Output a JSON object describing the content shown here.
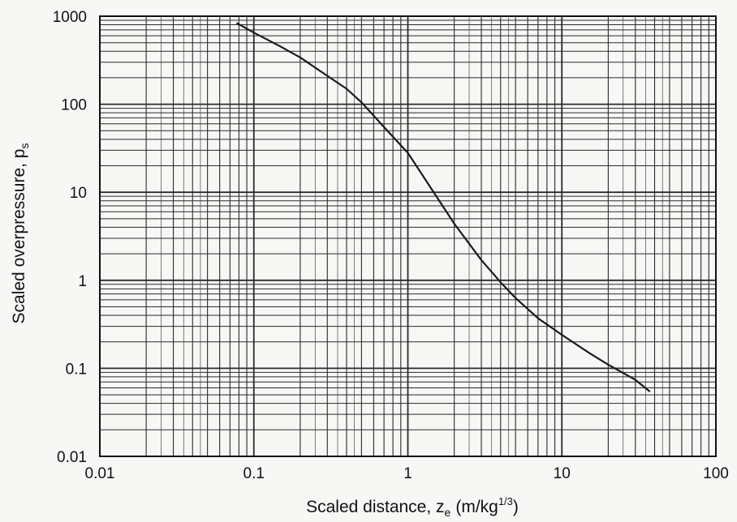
{
  "chart_data": {
    "type": "line",
    "title": "",
    "xlabel": "Scaled distance, z",
    "xlabel_sub": "e",
    "xlabel_units_prefix": "(m/kg",
    "xlabel_units_sup": "1/3",
    "xlabel_units_suffix": ")",
    "ylabel": "Scaled overpressure, p",
    "ylabel_sub": "s",
    "xscale": "log",
    "yscale": "log",
    "xlim": [
      0.01,
      100
    ],
    "ylim": [
      0.01,
      1000
    ],
    "grid": true,
    "legend": "none",
    "x_tick_labels": [
      "0.01",
      "0.1",
      "1",
      "10",
      "100"
    ],
    "y_tick_labels": [
      "0.01",
      "0.1",
      "1",
      "10",
      "100",
      "1000"
    ],
    "x_tick_values": [
      0.01,
      0.1,
      1,
      10,
      100
    ],
    "y_tick_values": [
      0.01,
      0.1,
      1,
      10,
      100,
      1000
    ],
    "series": [
      {
        "x": [
          0.078,
          0.1,
          0.15,
          0.2,
          0.3,
          0.4,
          0.5,
          0.7,
          1.0,
          1.5,
          2.0,
          3.0,
          4.0,
          5.0,
          7.0,
          10.0,
          15.0,
          20.0,
          30.0,
          37.0
        ],
        "y": [
          830,
          650,
          450,
          340,
          210,
          150,
          105,
          55,
          28,
          9.5,
          4.4,
          1.7,
          0.95,
          0.63,
          0.37,
          0.24,
          0.15,
          0.11,
          0.074,
          0.055
        ]
      }
    ],
    "colors": {
      "line": "#1a1a1a",
      "grid": "#2a2a2a",
      "background": "#f7f7f5"
    }
  }
}
